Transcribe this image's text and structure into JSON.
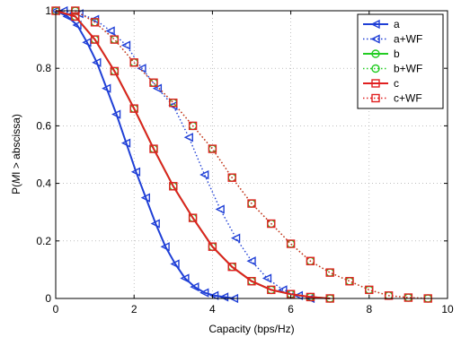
{
  "chart_data": {
    "type": "line",
    "title": "",
    "xlabel": "Capacity (bps/Hz)",
    "ylabel_parts": [
      "P(",
      "M",
      "I",
      " > abscissa)"
    ],
    "xlim": [
      0,
      10
    ],
    "ylim": [
      0,
      1
    ],
    "xticks": [
      "0",
      "2",
      "4",
      "6",
      "8",
      "10"
    ],
    "yticks": [
      "0",
      "0.2",
      "0.4",
      "0.6",
      "0.8",
      "1"
    ],
    "grid": true,
    "legend_position": "top-right",
    "series": [
      {
        "name": "a",
        "color": "#1f3fd6",
        "linestyle": "solid",
        "marker": "triangle-left",
        "x": [
          0.0,
          0.3,
          0.55,
          0.8,
          1.05,
          1.3,
          1.55,
          1.8,
          2.05,
          2.3,
          2.55,
          2.8,
          3.05,
          3.3,
          3.55,
          3.8,
          4.05,
          4.3,
          4.55
        ],
        "y": [
          1.0,
          0.98,
          0.95,
          0.89,
          0.82,
          0.73,
          0.64,
          0.54,
          0.44,
          0.35,
          0.26,
          0.18,
          0.12,
          0.07,
          0.04,
          0.02,
          0.01,
          0.005,
          0.0
        ]
      },
      {
        "name": "a+WF",
        "color": "#1f3fd6",
        "linestyle": "dotted",
        "marker": "triangle-left",
        "x": [
          0.2,
          0.6,
          1.0,
          1.4,
          1.8,
          2.2,
          2.6,
          3.0,
          3.4,
          3.8,
          4.2,
          4.6,
          5.0,
          5.4,
          5.8,
          6.2,
          6.5
        ],
        "y": [
          1.0,
          0.99,
          0.97,
          0.93,
          0.88,
          0.8,
          0.73,
          0.67,
          0.56,
          0.43,
          0.31,
          0.21,
          0.13,
          0.07,
          0.03,
          0.01,
          0.0
        ]
      },
      {
        "name": "b",
        "color": "#22cc22",
        "linestyle": "solid",
        "marker": "circle",
        "x": [
          0.0,
          0.5,
          1.0,
          1.5,
          2.0,
          2.5,
          3.0,
          3.5,
          4.0,
          4.5,
          5.0,
          5.5,
          6.0,
          6.5,
          7.0
        ],
        "y": [
          1.0,
          0.98,
          0.9,
          0.79,
          0.66,
          0.52,
          0.39,
          0.28,
          0.18,
          0.11,
          0.06,
          0.03,
          0.015,
          0.005,
          0.0
        ]
      },
      {
        "name": "b+WF",
        "color": "#22cc22",
        "linestyle": "dotted",
        "marker": "circle",
        "x": [
          0.5,
          1.0,
          1.5,
          2.0,
          2.5,
          3.0,
          3.5,
          4.0,
          4.5,
          5.0,
          5.5,
          6.0,
          6.5,
          7.0,
          7.5,
          8.0,
          8.5,
          9.0,
          9.5
        ],
        "y": [
          1.0,
          0.96,
          0.9,
          0.82,
          0.75,
          0.68,
          0.6,
          0.52,
          0.42,
          0.33,
          0.26,
          0.19,
          0.13,
          0.09,
          0.06,
          0.03,
          0.01,
          0.003,
          0.0
        ]
      },
      {
        "name": "c",
        "color": "#e02020",
        "linestyle": "solid",
        "marker": "square",
        "x": [
          0.0,
          0.5,
          1.0,
          1.5,
          2.0,
          2.5,
          3.0,
          3.5,
          4.0,
          4.5,
          5.0,
          5.5,
          6.0,
          6.5,
          7.0
        ],
        "y": [
          1.0,
          0.98,
          0.9,
          0.79,
          0.66,
          0.52,
          0.39,
          0.28,
          0.18,
          0.11,
          0.06,
          0.03,
          0.015,
          0.005,
          0.0
        ]
      },
      {
        "name": "c+WF",
        "color": "#e02020",
        "linestyle": "dotted",
        "marker": "square",
        "x": [
          0.5,
          1.0,
          1.5,
          2.0,
          2.5,
          3.0,
          3.5,
          4.0,
          4.5,
          5.0,
          5.5,
          6.0,
          6.5,
          7.0,
          7.5,
          8.0,
          8.5,
          9.0,
          9.5
        ],
        "y": [
          1.0,
          0.96,
          0.9,
          0.82,
          0.75,
          0.68,
          0.6,
          0.52,
          0.42,
          0.33,
          0.26,
          0.19,
          0.13,
          0.09,
          0.06,
          0.03,
          0.01,
          0.003,
          0.0
        ]
      }
    ]
  }
}
